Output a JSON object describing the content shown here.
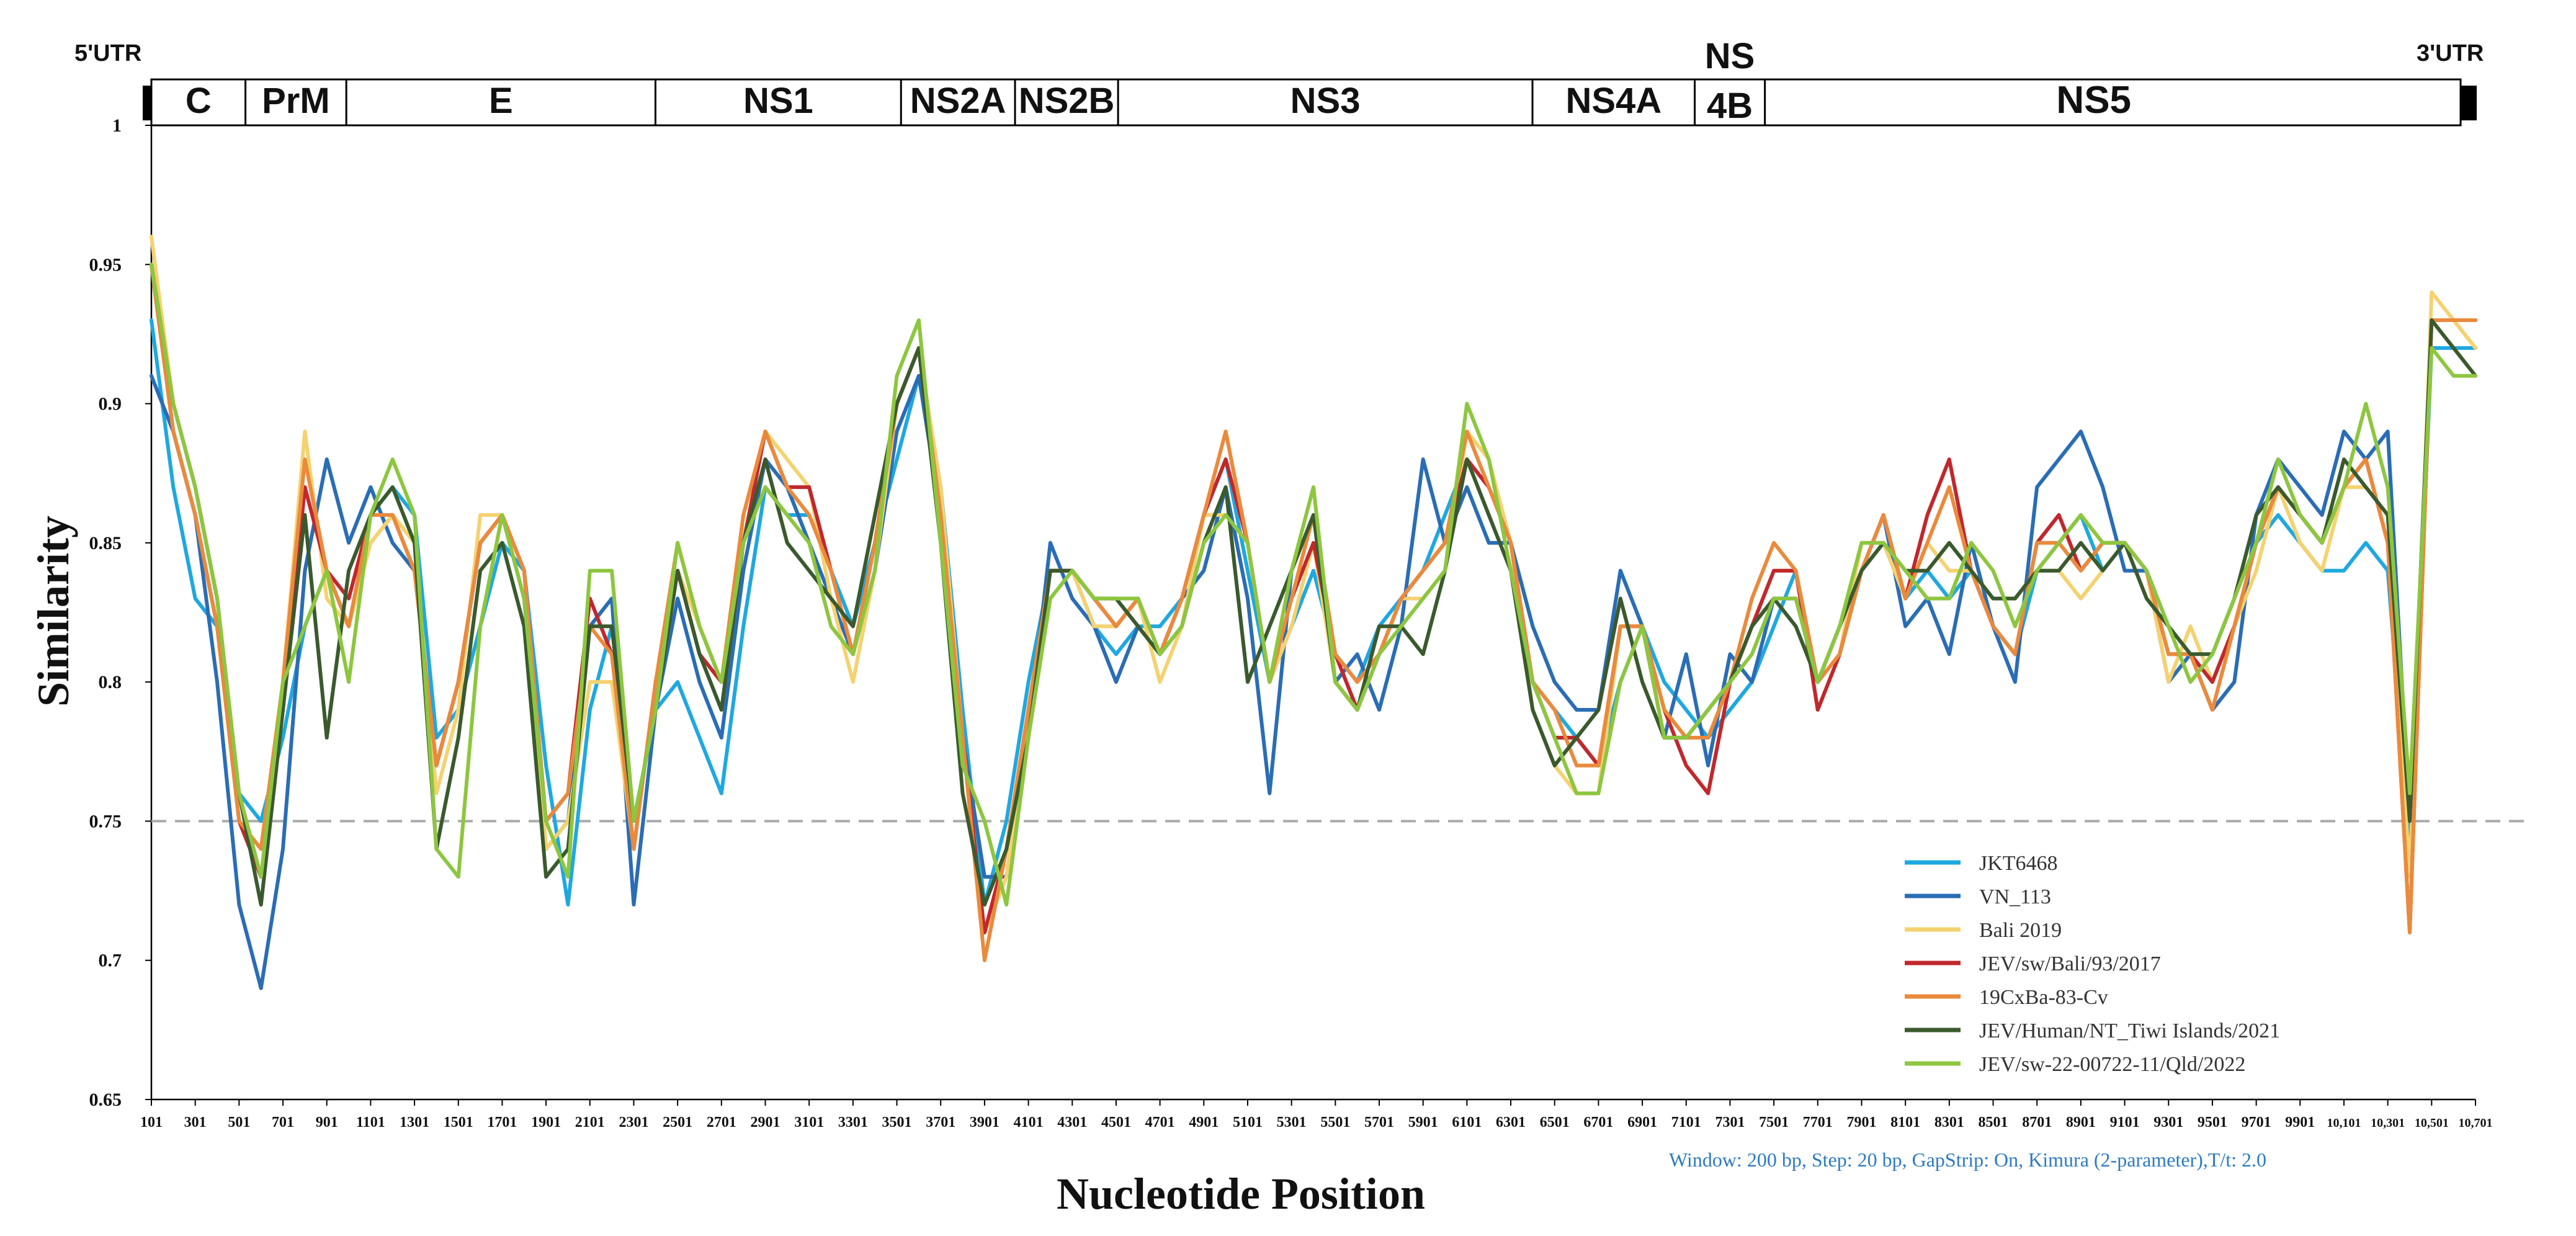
{
  "chart_data": {
    "type": "line",
    "title": "",
    "xlabel": "Nucleotide Position",
    "ylabel": "Similarity",
    "xlim": [
      101,
      10701
    ],
    "ylim": [
      0.65,
      1.0
    ],
    "y_ticks": [
      "0.65",
      "0.7",
      "0.75",
      "0.8",
      "0.85",
      "0.9",
      "0.95",
      "1"
    ],
    "x_ticks": [
      "101",
      "301",
      "501",
      "701",
      "901",
      "1101",
      "1301",
      "1501",
      "1701",
      "1901",
      "2101",
      "2301",
      "2501",
      "2701",
      "2901",
      "3101",
      "3301",
      "3501",
      "3701",
      "3901",
      "4101",
      "4301",
      "4501",
      "4701",
      "4901",
      "5101",
      "5301",
      "5501",
      "5701",
      "5901",
      "6101",
      "6301",
      "6501",
      "6701",
      "6901",
      "7101",
      "7301",
      "7501",
      "7701",
      "7901",
      "8101",
      "8301",
      "8501",
      "8701",
      "8901",
      "9101",
      "9301",
      "9501",
      "9701",
      "9901",
      "10,101",
      "10,301",
      "10,501",
      "10,701"
    ],
    "threshold": 0.75,
    "legend_position": "bottom-right",
    "annotation": "Window: 200 bp, Step: 20 bp, GapStrip: On, Kimura (2-parameter),T/t: 2.0",
    "genome_map": {
      "utr5_label": "5'UTR",
      "utr3_label": "3'UTR",
      "segments": [
        {
          "label": "C",
          "start": 101,
          "end": 530
        },
        {
          "label": "PrM",
          "start": 530,
          "end": 990
        },
        {
          "label": "E",
          "start": 990,
          "end": 2400
        },
        {
          "label": "NS1",
          "start": 2400,
          "end": 3520
        },
        {
          "label": "NS2A",
          "start": 3520,
          "end": 4040
        },
        {
          "label": "NS2B",
          "start": 4040,
          "end": 4510
        },
        {
          "label": "NS3",
          "start": 4510,
          "end": 6400
        },
        {
          "label": "NS4A",
          "start": 6400,
          "end": 7140
        },
        {
          "label": "4B",
          "start": 7140,
          "end": 7460
        },
        {
          "label": "NS5",
          "start": 7460,
          "end": 10460
        }
      ],
      "ns4b_top_label": "NS"
    },
    "x": [
      101,
      201,
      301,
      401,
      501,
      601,
      701,
      801,
      901,
      1001,
      1101,
      1201,
      1301,
      1401,
      1501,
      1601,
      1701,
      1801,
      1901,
      2001,
      2101,
      2201,
      2301,
      2401,
      2501,
      2601,
      2701,
      2801,
      2901,
      3001,
      3101,
      3201,
      3301,
      3401,
      3501,
      3601,
      3701,
      3801,
      3901,
      4001,
      4101,
      4201,
      4301,
      4401,
      4501,
      4601,
      4701,
      4801,
      4901,
      5001,
      5101,
      5201,
      5301,
      5401,
      5501,
      5601,
      5701,
      5801,
      5901,
      6001,
      6101,
      6201,
      6301,
      6401,
      6501,
      6601,
      6701,
      6801,
      6901,
      7001,
      7101,
      7201,
      7301,
      7401,
      7501,
      7601,
      7701,
      7801,
      7901,
      8001,
      8101,
      8201,
      8301,
      8401,
      8501,
      8601,
      8701,
      8801,
      8901,
      9001,
      9101,
      9201,
      9301,
      9401,
      9501,
      9601,
      9701,
      9801,
      9901,
      10001,
      10101,
      10201,
      10301,
      10401,
      10501,
      10601,
      10701
    ],
    "series": [
      {
        "name": "JKT6468",
        "color": "#1fa8e0",
        "values": [
          0.93,
          0.87,
          0.83,
          0.82,
          0.76,
          0.75,
          0.78,
          0.82,
          0.84,
          0.82,
          0.86,
          0.87,
          0.86,
          0.78,
          0.79,
          0.82,
          0.85,
          0.84,
          0.77,
          0.72,
          0.79,
          0.82,
          0.75,
          0.79,
          0.8,
          0.78,
          0.76,
          0.82,
          0.87,
          0.86,
          0.86,
          0.84,
          0.82,
          0.85,
          0.88,
          0.91,
          0.87,
          0.79,
          0.72,
          0.75,
          0.8,
          0.84,
          0.84,
          0.82,
          0.81,
          0.82,
          0.82,
          0.83,
          0.86,
          0.88,
          0.84,
          0.8,
          0.82,
          0.84,
          0.81,
          0.8,
          0.82,
          0.83,
          0.84,
          0.86,
          0.88,
          0.87,
          0.85,
          0.8,
          0.79,
          0.78,
          0.77,
          0.8,
          0.82,
          0.8,
          0.79,
          0.78,
          0.79,
          0.8,
          0.82,
          0.84,
          0.8,
          0.81,
          0.84,
          0.85,
          0.83,
          0.84,
          0.83,
          0.84,
          0.82,
          0.81,
          0.84,
          0.85,
          0.86,
          0.84,
          0.85,
          0.84,
          0.82,
          0.81,
          0.8,
          0.82,
          0.85,
          0.86,
          0.85,
          0.84,
          0.84,
          0.85,
          0.84,
          0.74,
          0.92,
          0.92,
          0.92
        ]
      },
      {
        "name": "VN_113",
        "color": "#2a6db5",
        "values": [
          0.91,
          0.89,
          0.86,
          0.8,
          0.72,
          0.69,
          0.74,
          0.84,
          0.88,
          0.85,
          0.87,
          0.85,
          0.84,
          0.77,
          0.8,
          0.85,
          0.86,
          0.83,
          0.74,
          0.75,
          0.82,
          0.83,
          0.72,
          0.79,
          0.83,
          0.8,
          0.78,
          0.84,
          0.88,
          0.87,
          0.85,
          0.83,
          0.81,
          0.84,
          0.89,
          0.91,
          0.86,
          0.78,
          0.73,
          0.73,
          0.78,
          0.85,
          0.83,
          0.82,
          0.8,
          0.82,
          0.81,
          0.83,
          0.84,
          0.87,
          0.83,
          0.76,
          0.84,
          0.86,
          0.8,
          0.81,
          0.79,
          0.82,
          0.88,
          0.85,
          0.87,
          0.85,
          0.85,
          0.82,
          0.8,
          0.79,
          0.79,
          0.84,
          0.82,
          0.78,
          0.81,
          0.77,
          0.81,
          0.8,
          0.83,
          0.83,
          0.8,
          0.82,
          0.84,
          0.86,
          0.82,
          0.83,
          0.81,
          0.85,
          0.82,
          0.8,
          0.87,
          0.88,
          0.89,
          0.87,
          0.84,
          0.84,
          0.8,
          0.81,
          0.79,
          0.8,
          0.86,
          0.88,
          0.87,
          0.86,
          0.89,
          0.88,
          0.89,
          0.75,
          0.93,
          0.93,
          0.93
        ]
      },
      {
        "name": "Bali 2019",
        "color": "#f5d270",
        "values": [
          0.96,
          0.9,
          0.87,
          0.83,
          0.75,
          0.74,
          0.8,
          0.89,
          0.83,
          0.82,
          0.85,
          0.86,
          0.85,
          0.76,
          0.79,
          0.86,
          0.86,
          0.84,
          0.74,
          0.75,
          0.8,
          0.8,
          0.74,
          0.8,
          0.84,
          0.82,
          0.8,
          0.86,
          0.89,
          0.88,
          0.87,
          0.83,
          0.8,
          0.84,
          0.9,
          0.92,
          0.87,
          0.78,
          0.71,
          0.73,
          0.79,
          0.84,
          0.84,
          0.82,
          0.82,
          0.83,
          0.8,
          0.82,
          0.86,
          0.86,
          0.85,
          0.8,
          0.82,
          0.85,
          0.8,
          0.79,
          0.81,
          0.83,
          0.83,
          0.84,
          0.89,
          0.88,
          0.85,
          0.79,
          0.77,
          0.76,
          0.76,
          0.82,
          0.82,
          0.78,
          0.78,
          0.79,
          0.8,
          0.82,
          0.84,
          0.84,
          0.8,
          0.81,
          0.85,
          0.85,
          0.83,
          0.85,
          0.84,
          0.84,
          0.83,
          0.83,
          0.84,
          0.84,
          0.83,
          0.84,
          0.85,
          0.84,
          0.8,
          0.82,
          0.8,
          0.82,
          0.84,
          0.87,
          0.85,
          0.84,
          0.87,
          0.87,
          0.86,
          0.73,
          0.94,
          0.93,
          0.92
        ]
      },
      {
        "name": "JEV/sw/Bali/93/2017",
        "color": "#c0282d",
        "values": [
          0.95,
          0.89,
          0.86,
          0.82,
          0.75,
          0.73,
          0.79,
          0.87,
          0.84,
          0.83,
          0.86,
          0.86,
          0.84,
          0.77,
          0.8,
          0.85,
          0.86,
          0.84,
          0.75,
          0.76,
          0.83,
          0.81,
          0.74,
          0.8,
          0.84,
          0.81,
          0.8,
          0.85,
          0.89,
          0.87,
          0.87,
          0.84,
          0.81,
          0.85,
          0.9,
          0.92,
          0.86,
          0.78,
          0.71,
          0.74,
          0.79,
          0.84,
          0.84,
          0.83,
          0.82,
          0.83,
          0.81,
          0.83,
          0.86,
          0.88,
          0.85,
          0.8,
          0.83,
          0.85,
          0.81,
          0.79,
          0.81,
          0.83,
          0.84,
          0.85,
          0.88,
          0.87,
          0.85,
          0.8,
          0.78,
          0.78,
          0.77,
          0.82,
          0.82,
          0.79,
          0.77,
          0.76,
          0.8,
          0.82,
          0.84,
          0.84,
          0.79,
          0.81,
          0.84,
          0.86,
          0.83,
          0.86,
          0.88,
          0.84,
          0.82,
          0.81,
          0.85,
          0.86,
          0.84,
          0.85,
          0.85,
          0.84,
          0.81,
          0.81,
          0.8,
          0.82,
          0.85,
          0.87,
          0.86,
          0.85,
          0.87,
          0.88,
          0.85,
          0.71,
          0.93,
          0.93,
          0.93
        ]
      },
      {
        "name": "19CxBa-83-Cv",
        "color": "#ea8a3c",
        "values": [
          0.95,
          0.89,
          0.86,
          0.82,
          0.75,
          0.74,
          0.8,
          0.88,
          0.84,
          0.82,
          0.86,
          0.86,
          0.84,
          0.77,
          0.8,
          0.85,
          0.86,
          0.84,
          0.75,
          0.76,
          0.82,
          0.81,
          0.74,
          0.8,
          0.85,
          0.82,
          0.8,
          0.86,
          0.89,
          0.87,
          0.86,
          0.84,
          0.81,
          0.85,
          0.9,
          0.92,
          0.86,
          0.78,
          0.7,
          0.74,
          0.79,
          0.84,
          0.84,
          0.83,
          0.82,
          0.83,
          0.81,
          0.83,
          0.86,
          0.89,
          0.85,
          0.8,
          0.83,
          0.86,
          0.81,
          0.8,
          0.81,
          0.83,
          0.84,
          0.85,
          0.89,
          0.87,
          0.85,
          0.8,
          0.79,
          0.77,
          0.77,
          0.82,
          0.82,
          0.79,
          0.78,
          0.78,
          0.8,
          0.83,
          0.85,
          0.84,
          0.8,
          0.81,
          0.84,
          0.86,
          0.83,
          0.85,
          0.87,
          0.84,
          0.82,
          0.81,
          0.85,
          0.85,
          0.84,
          0.85,
          0.85,
          0.84,
          0.81,
          0.81,
          0.79,
          0.82,
          0.85,
          0.87,
          0.86,
          0.85,
          0.87,
          0.88,
          0.85,
          0.71,
          0.93,
          0.93,
          0.93
        ]
      },
      {
        "name": "JEV/Human/NT_Tiwi Islands/2021",
        "color": "#3a5a2e",
        "values": [
          0.95,
          0.9,
          0.87,
          0.83,
          0.76,
          0.72,
          0.79,
          0.86,
          0.78,
          0.84,
          0.86,
          0.87,
          0.85,
          0.74,
          0.78,
          0.84,
          0.85,
          0.82,
          0.73,
          0.74,
          0.82,
          0.82,
          0.75,
          0.79,
          0.84,
          0.81,
          0.79,
          0.85,
          0.88,
          0.85,
          0.84,
          0.83,
          0.82,
          0.86,
          0.9,
          0.92,
          0.85,
          0.76,
          0.72,
          0.74,
          0.78,
          0.84,
          0.84,
          0.83,
          0.83,
          0.82,
          0.81,
          0.82,
          0.85,
          0.87,
          0.8,
          0.82,
          0.84,
          0.86,
          0.8,
          0.79,
          0.82,
          0.82,
          0.81,
          0.84,
          0.88,
          0.86,
          0.84,
          0.79,
          0.77,
          0.78,
          0.79,
          0.83,
          0.8,
          0.78,
          0.78,
          0.79,
          0.8,
          0.82,
          0.83,
          0.82,
          0.8,
          0.82,
          0.84,
          0.85,
          0.84,
          0.84,
          0.85,
          0.84,
          0.83,
          0.83,
          0.84,
          0.84,
          0.85,
          0.84,
          0.85,
          0.83,
          0.82,
          0.81,
          0.81,
          0.83,
          0.86,
          0.87,
          0.86,
          0.85,
          0.88,
          0.87,
          0.86,
          0.75,
          0.93,
          0.92,
          0.91
        ]
      },
      {
        "name": "JEV/sw-22-00722-11/Qld/2022",
        "color": "#8dc63f",
        "values": [
          0.95,
          0.9,
          0.87,
          0.83,
          0.76,
          0.73,
          0.8,
          0.82,
          0.84,
          0.8,
          0.86,
          0.88,
          0.86,
          0.74,
          0.73,
          0.82,
          0.86,
          0.83,
          0.75,
          0.73,
          0.84,
          0.84,
          0.75,
          0.79,
          0.85,
          0.82,
          0.8,
          0.85,
          0.87,
          0.86,
          0.85,
          0.82,
          0.81,
          0.84,
          0.91,
          0.93,
          0.85,
          0.77,
          0.75,
          0.72,
          0.78,
          0.83,
          0.84,
          0.83,
          0.83,
          0.83,
          0.81,
          0.82,
          0.85,
          0.86,
          0.85,
          0.8,
          0.84,
          0.87,
          0.8,
          0.79,
          0.81,
          0.82,
          0.83,
          0.84,
          0.9,
          0.88,
          0.84,
          0.8,
          0.78,
          0.76,
          0.76,
          0.8,
          0.82,
          0.78,
          0.78,
          0.79,
          0.8,
          0.81,
          0.83,
          0.83,
          0.8,
          0.82,
          0.85,
          0.85,
          0.84,
          0.83,
          0.83,
          0.85,
          0.84,
          0.82,
          0.84,
          0.85,
          0.86,
          0.85,
          0.85,
          0.84,
          0.82,
          0.8,
          0.81,
          0.83,
          0.85,
          0.88,
          0.86,
          0.85,
          0.87,
          0.9,
          0.87,
          0.76,
          0.92,
          0.91,
          0.91
        ]
      }
    ]
  }
}
